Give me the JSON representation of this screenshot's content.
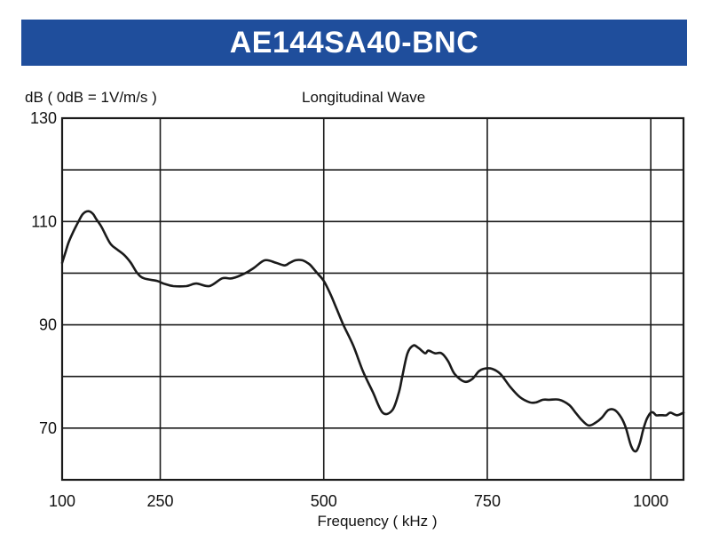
{
  "chart_data": {
    "type": "line",
    "title": "AE144SA40-BNC",
    "subtitle": "Longitudinal Wave",
    "ylabel": "dB ( 0dB = 1V/m/s )",
    "xlabel": "Frequency ( kHz )",
    "xlim": [
      100,
      1050
    ],
    "ylim": [
      60,
      130
    ],
    "xticks": [
      100,
      250,
      500,
      750,
      1000
    ],
    "xtick_labels": [
      "100",
      "250",
      "500",
      "750",
      "1000"
    ],
    "yticks": [
      70,
      90,
      110,
      130
    ],
    "ytick_labels": [
      "70",
      "90",
      "110",
      "130"
    ],
    "x_gridlines": [
      100,
      250,
      500,
      750,
      1000
    ],
    "y_gridlines": [
      70,
      80,
      90,
      100,
      110,
      120,
      130
    ],
    "grid": true,
    "legend": "none",
    "line_color": "#1a1a1a",
    "series": [
      {
        "x": [
          100,
          105,
          110,
          117,
          125,
          132,
          140,
          147,
          152,
          160,
          168,
          175,
          185,
          195,
          205,
          215,
          225,
          245,
          255,
          270,
          290,
          305,
          325,
          345,
          360,
          380,
          393,
          410,
          427,
          440,
          448,
          457,
          467,
          475,
          480,
          490,
          500,
          510,
          520,
          530,
          545,
          560,
          575,
          590,
          605,
          615,
          620,
          628,
          637,
          645,
          655,
          660,
          670,
          680,
          690,
          700,
          715,
          727,
          737,
          745,
          757,
          770,
          785,
          800,
          815,
          825,
          835,
          845,
          860,
          875,
          885,
          895,
          905,
          915,
          925,
          935,
          945,
          955,
          962,
          970,
          977,
          983,
          988,
          993,
          997,
          1000,
          1004,
          1008,
          1013,
          1018,
          1024,
          1030,
          1040,
          1050
        ],
        "y": [
          102,
          104,
          106,
          108,
          110,
          111.5,
          112,
          111.5,
          110.5,
          109,
          107,
          105.5,
          104.5,
          103.5,
          102,
          100,
          99,
          98.5,
          98,
          97.5,
          97.5,
          98,
          97.5,
          99,
          99,
          100,
          101,
          102.5,
          102,
          101.5,
          102,
          102.5,
          102.5,
          102,
          101.5,
          100,
          98.5,
          96,
          93,
          90,
          86,
          81,
          77,
          73,
          73.5,
          77,
          80,
          84.5,
          86,
          85.5,
          84.5,
          85,
          84.5,
          84.5,
          83,
          80.5,
          79,
          79.5,
          81,
          81.5,
          81.5,
          80.5,
          78,
          76,
          75,
          75,
          75.5,
          75.5,
          75.5,
          74.5,
          73,
          71.5,
          70.5,
          71,
          72,
          73.5,
          73.5,
          72,
          70,
          66.5,
          65.5,
          67,
          69.5,
          71.5,
          72.5,
          73,
          73,
          72.5,
          72.5,
          72.5,
          72.5,
          73,
          72.5,
          73
        ]
      }
    ]
  }
}
